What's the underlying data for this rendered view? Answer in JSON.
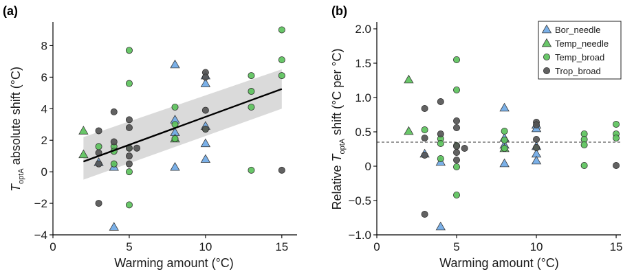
{
  "chart_data": [
    {
      "type": "scatter",
      "panel_label": "(a)",
      "xlabel": "Warming amount (°C)",
      "ylabel": {
        "prefix": "T",
        "sub": "optA",
        "suffix": " absolute shift (°C)"
      },
      "xlim": [
        0,
        16
      ],
      "ylim": [
        -4,
        9.5
      ],
      "xticks": [
        0,
        5,
        10,
        15
      ],
      "yticks": [
        -4,
        -2,
        0,
        2,
        4,
        6,
        8
      ],
      "fit_line": {
        "x": [
          2.0,
          15.0
        ],
        "y": [
          0.65,
          5.25
        ]
      },
      "ci_band": {
        "x": [
          2.0,
          15.0
        ],
        "upper": [
          2.2,
          6.5
        ],
        "lower": [
          -0.5,
          4.0
        ]
      },
      "series": [
        {
          "name": "Bor_needle",
          "marker": "triangle",
          "color": "#6fa9e6",
          "points": [
            [
              3,
              0.6
            ],
            [
              4,
              0.3
            ],
            [
              4,
              -3.5
            ],
            [
              8,
              6.8
            ],
            [
              8,
              3.3
            ],
            [
              8,
              2.5
            ],
            [
              8,
              0.3
            ],
            [
              10,
              6.1
            ],
            [
              10,
              5.6
            ],
            [
              10,
              2.9
            ],
            [
              10,
              1.8
            ],
            [
              10,
              0.8
            ]
          ]
        },
        {
          "name": "Temp_needle",
          "marker": "triangle",
          "color": "#5cc25c",
          "points": [
            [
              2,
              2.6
            ],
            [
              2,
              1.1
            ],
            [
              8,
              2.1
            ]
          ]
        },
        {
          "name": "Temp_broad",
          "marker": "circle",
          "color": "#5cc25c",
          "points": [
            [
              3,
              1.6
            ],
            [
              4,
              1.6
            ],
            [
              4,
              1.3
            ],
            [
              4,
              0.5
            ],
            [
              5,
              7.7
            ],
            [
              5,
              5.6
            ],
            [
              5,
              1.5
            ],
            [
              5,
              0.0
            ],
            [
              5,
              -2.1
            ],
            [
              8,
              4.1
            ],
            [
              8,
              3.0
            ],
            [
              8,
              2.1
            ],
            [
              10,
              2.7
            ],
            [
              13,
              6.1
            ],
            [
              13,
              5.1
            ],
            [
              13,
              4.1
            ],
            [
              13,
              0.1
            ],
            [
              15,
              9.0
            ],
            [
              15,
              7.1
            ],
            [
              15,
              6.1
            ]
          ]
        },
        {
          "name": "Trop_broad",
          "marker": "circle",
          "color": "#555555",
          "points": [
            [
              3,
              2.6
            ],
            [
              3,
              1.2
            ],
            [
              3,
              0.5
            ],
            [
              3,
              -2.0
            ],
            [
              4,
              3.8
            ],
            [
              4,
              1.9
            ],
            [
              5,
              3.3
            ],
            [
              5,
              2.8
            ],
            [
              5,
              1.5
            ],
            [
              5,
              1.0
            ],
            [
              5,
              0.5
            ],
            [
              5.5,
              1.5
            ],
            [
              10,
              6.3
            ],
            [
              10,
              6.0
            ],
            [
              10,
              3.9
            ],
            [
              10,
              2.7
            ],
            [
              15,
              0.1
            ]
          ]
        }
      ]
    },
    {
      "type": "scatter",
      "panel_label": "(b)",
      "xlabel": "Warming amount (°C)",
      "ylabel": {
        "prefix": "Relative T",
        "sub": "optA",
        "suffix": " shift (°C per °C)"
      },
      "xlim": [
        0,
        15.3
      ],
      "ylim": [
        -1.0,
        2.1
      ],
      "xticks": [
        0,
        5,
        10,
        15
      ],
      "yticks": [
        -1.0,
        -0.5,
        0,
        0.5,
        1.0,
        1.5,
        2.0
      ],
      "ytick_labels": [
        "−1.0",
        "−0.5",
        "0",
        "0.5",
        "1.0",
        "1.5",
        "2.0"
      ],
      "hline": 0.35,
      "legend": {
        "position": "top-right",
        "entries": [
          {
            "label": "Bor_needle",
            "marker": "triangle",
            "color": "#6fa9e6"
          },
          {
            "label": "Temp_needle",
            "marker": "triangle",
            "color": "#5cc25c"
          },
          {
            "label": "Temp_broad",
            "marker": "circle",
            "color": "#5cc25c"
          },
          {
            "label": "Trop_broad",
            "marker": "circle",
            "color": "#555555"
          }
        ]
      },
      "series": [
        {
          "name": "Bor_needle",
          "marker": "triangle",
          "color": "#6fa9e6",
          "points": [
            [
              3,
              0.18
            ],
            [
              4,
              0.06
            ],
            [
              4,
              -0.88
            ],
            [
              8,
              0.85
            ],
            [
              8,
              0.41
            ],
            [
              8,
              0.31
            ],
            [
              8,
              0.04
            ],
            [
              10,
              0.6
            ],
            [
              10,
              0.55
            ],
            [
              10,
              0.29
            ],
            [
              10,
              0.18
            ],
            [
              10,
              0.08
            ]
          ]
        },
        {
          "name": "Temp_needle",
          "marker": "triangle",
          "color": "#5cc25c",
          "points": [
            [
              2,
              1.26
            ],
            [
              2,
              0.51
            ],
            [
              8,
              0.26
            ]
          ]
        },
        {
          "name": "Temp_broad",
          "marker": "circle",
          "color": "#5cc25c",
          "points": [
            [
              3,
              0.53
            ],
            [
              4,
              0.4
            ],
            [
              4,
              0.33
            ],
            [
              4,
              0.11
            ],
            [
              5,
              1.55
            ],
            [
              5,
              1.11
            ],
            [
              5,
              0.3
            ],
            [
              5,
              -0.01
            ],
            [
              5,
              -0.42
            ],
            [
              8,
              0.51
            ],
            [
              8,
              0.38
            ],
            [
              8,
              0.26
            ],
            [
              10,
              0.27
            ],
            [
              13,
              0.47
            ],
            [
              13,
              0.39
            ],
            [
              13,
              0.31
            ],
            [
              13,
              0.01
            ],
            [
              15,
              0.61
            ],
            [
              15,
              0.47
            ],
            [
              15,
              0.41
            ]
          ]
        },
        {
          "name": "Trop_broad",
          "marker": "circle",
          "color": "#555555",
          "points": [
            [
              3,
              0.84
            ],
            [
              3,
              0.41
            ],
            [
              3,
              0.16
            ],
            [
              3,
              -0.7
            ],
            [
              4,
              0.94
            ],
            [
              4,
              0.47
            ],
            [
              5,
              0.66
            ],
            [
              5,
              0.56
            ],
            [
              5,
              0.29
            ],
            [
              5,
              0.2
            ],
            [
              5,
              0.09
            ],
            [
              5.5,
              0.26
            ],
            [
              10,
              0.64
            ],
            [
              10,
              0.6
            ],
            [
              10,
              0.39
            ],
            [
              10,
              0.27
            ],
            [
              15,
              0.01
            ]
          ]
        }
      ]
    }
  ]
}
